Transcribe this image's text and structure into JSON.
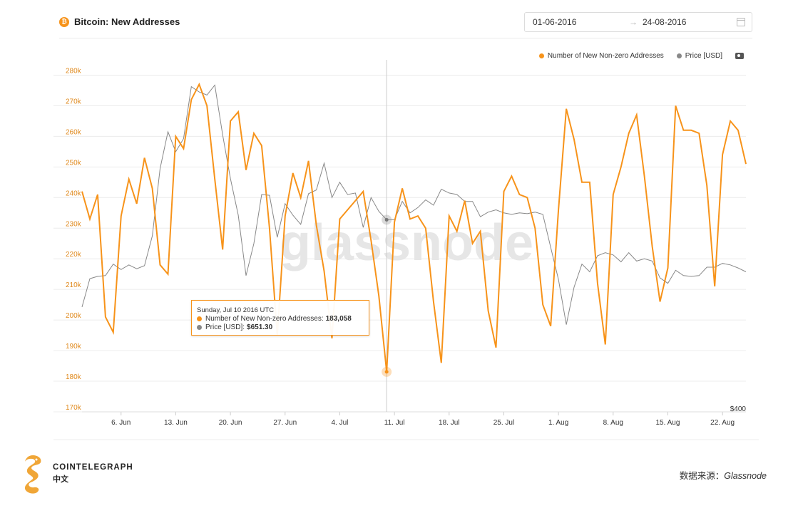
{
  "header": {
    "icon_glyph": "₿",
    "title": "Bitcoin: New Addresses",
    "date_start": "01-06-2016",
    "date_arrow": "→",
    "date_end": "24-08-2016"
  },
  "legend": {
    "series1": "Number of New Non-zero Addresses",
    "series2": "Price [USD]"
  },
  "watermark": "glassnode",
  "tooltip": {
    "date": "Sunday, Jul 10 2016 UTC",
    "series1_label": "Number of New Non-zero Addresses:",
    "series1_value": "183,058",
    "series2_label": "Price [USD]:",
    "series2_value": "$651.30"
  },
  "footer": {
    "brand": "COINTELEGRAPH",
    "brand_sub": "中文",
    "source_label": "数据来源：",
    "source_name": "Glassnode"
  },
  "colors": {
    "series1": "#f7931a",
    "series2": "#888888"
  },
  "chart_data": {
    "type": "line",
    "x_start": "2016-06-01",
    "x_ticks": [
      "6. Jun",
      "13. Jun",
      "20. Jun",
      "27. Jun",
      "4. Jul",
      "11. Jul",
      "18. Jul",
      "25. Jul",
      "1. Aug",
      "8. Aug",
      "15. Aug",
      "22. Aug"
    ],
    "y_ticks": [
      "170k",
      "180k",
      "190k",
      "200k",
      "210k",
      "220k",
      "230k",
      "240k",
      "250k",
      "260k",
      "270k",
      "280k"
    ],
    "ylim": [
      170000,
      285000
    ],
    "right_axis_label": "$400",
    "crosshair_date": "2016-07-10",
    "series": [
      {
        "name": "Number of New Non-zero Addresses",
        "values": [
          242000,
          233000,
          241000,
          201000,
          196000,
          234000,
          246000,
          238000,
          253000,
          243000,
          218000,
          215000,
          260000,
          256000,
          272000,
          277000,
          270000,
          246000,
          223000,
          265000,
          268000,
          249000,
          261000,
          257000,
          230000,
          195000,
          234000,
          248000,
          240000,
          252000,
          231000,
          216000,
          194000,
          233000,
          236000,
          239000,
          242000,
          226000,
          208000,
          183058,
          232000,
          243000,
          233000,
          234000,
          230000,
          206000,
          186000,
          234000,
          229000,
          239000,
          225000,
          229000,
          203000,
          191000,
          242000,
          247000,
          241000,
          240000,
          230000,
          205000,
          198000,
          236000,
          269000,
          259000,
          245000,
          245000,
          212000,
          192000,
          241000,
          250000,
          261000,
          267000,
          247000,
          224000,
          206000,
          217000,
          270000,
          262000,
          262000,
          261000,
          244000,
          211000,
          254000,
          265000,
          262000,
          251000
        ]
      },
      {
        "name": "Price [USD]",
        "values": [
          537,
          574,
          577,
          578,
          593,
          586,
          592,
          587,
          591,
          630,
          718,
          766,
          740,
          757,
          825,
          818,
          814,
          827,
          762,
          705,
          657,
          578,
          620,
          684,
          683,
          628,
          672,
          657,
          645,
          685,
          690,
          725,
          680,
          700,
          684,
          686,
          641,
          680,
          662,
          651,
          651,
          675,
          660,
          667,
          677,
          670,
          691,
          686,
          684,
          675,
          675,
          655,
          661,
          664,
          660,
          658,
          660,
          659,
          661,
          658,
          615,
          573,
          514,
          563,
          593,
          583,
          604,
          608,
          605,
          596,
          608,
          597,
          600,
          597,
          575,
          568,
          585,
          578,
          577,
          578,
          589,
          589,
          594,
          592,
          588,
          583
        ]
      }
    ]
  }
}
